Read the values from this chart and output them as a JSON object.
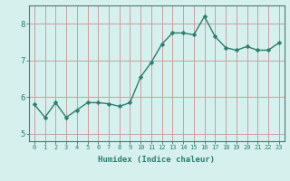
{
  "x": [
    0,
    1,
    2,
    3,
    4,
    5,
    6,
    7,
    8,
    9,
    10,
    11,
    12,
    13,
    14,
    15,
    16,
    17,
    18,
    19,
    20,
    21,
    22,
    23
  ],
  "y": [
    5.8,
    5.45,
    5.85,
    5.45,
    5.65,
    5.85,
    5.85,
    5.82,
    5.75,
    5.85,
    6.55,
    6.95,
    7.45,
    7.75,
    7.75,
    7.7,
    8.2,
    7.65,
    7.35,
    7.28,
    7.38,
    7.28,
    7.28,
    7.48
  ],
  "line_color": "#2e7d6e",
  "marker": "D",
  "marker_size": 2.5,
  "bg_color": "#d6f0ee",
  "grid_color": "#c8a0a0",
  "xlabel": "Humidex (Indice chaleur)",
  "ylim": [
    4.8,
    8.5
  ],
  "xlim": [
    -0.5,
    23.5
  ],
  "yticks": [
    5,
    6,
    7,
    8
  ],
  "xticks": [
    0,
    1,
    2,
    3,
    4,
    5,
    6,
    7,
    8,
    9,
    10,
    11,
    12,
    13,
    14,
    15,
    16,
    17,
    18,
    19,
    20,
    21,
    22,
    23
  ]
}
